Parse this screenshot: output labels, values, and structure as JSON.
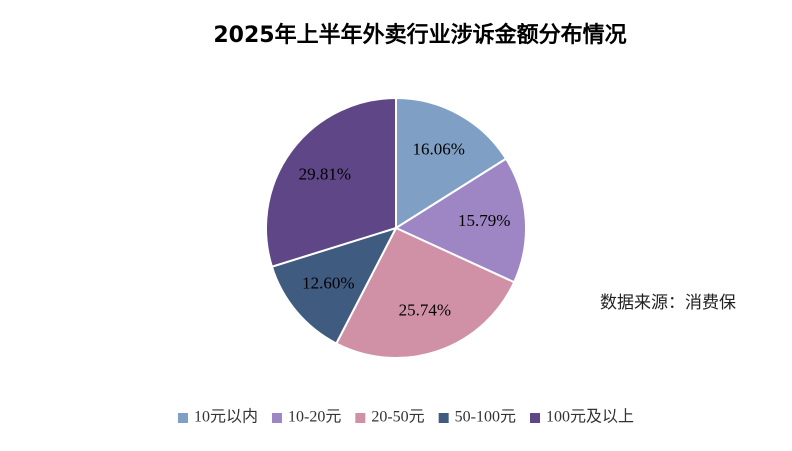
{
  "chart_data": {
    "type": "pie",
    "title": "2025年上半年外卖行业涉诉金额分布情况",
    "categories": [
      "10元以内",
      "10-20元",
      "20-50元",
      "50-100元",
      "100元及以上"
    ],
    "values": [
      16.06,
      15.79,
      25.74,
      12.6,
      29.81
    ],
    "value_labels": [
      "16.06%",
      "15.79%",
      "25.74%",
      "12.60%",
      "29.81%"
    ],
    "colors": [
      "#7f9fc4",
      "#9e86c5",
      "#d091a6",
      "#3f5b80",
      "#5f4687"
    ],
    "annotation": "数据来源：消费保",
    "legend": "bottom"
  }
}
